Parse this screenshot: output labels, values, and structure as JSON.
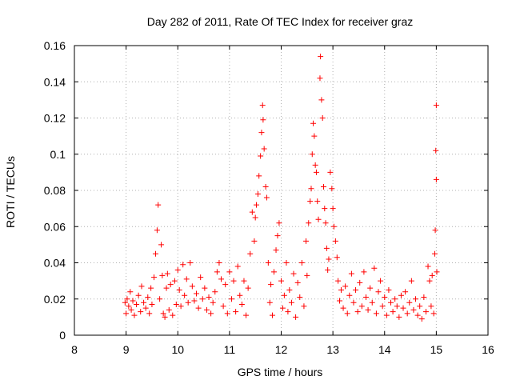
{
  "chart_data": {
    "type": "scatter",
    "title": "Day 282 of 2011, Rate Of TEC Index for receiver graz",
    "xlabel": "GPS time / hours",
    "ylabel": "ROTI / TECUs",
    "xlim": [
      8,
      16
    ],
    "ylim": [
      0,
      0.16
    ],
    "xticks": [
      "8",
      "9",
      "10",
      "11",
      "12",
      "13",
      "14",
      "15",
      "16"
    ],
    "yticks": [
      "0",
      "0.02",
      "0.04",
      "0.06",
      "0.08",
      "0.1",
      "0.12",
      "0.14",
      "0.16"
    ],
    "grid": true,
    "marker": "plus",
    "series": [
      {
        "color": "#ff0000",
        "points": [
          [
            8.98,
            0.018
          ],
          [
            9.0,
            0.012
          ],
          [
            9.02,
            0.02
          ],
          [
            9.05,
            0.016
          ],
          [
            9.08,
            0.024
          ],
          [
            9.1,
            0.014
          ],
          [
            9.13,
            0.019
          ],
          [
            9.16,
            0.011
          ],
          [
            9.2,
            0.017
          ],
          [
            9.24,
            0.022
          ],
          [
            9.28,
            0.013
          ],
          [
            9.3,
            0.027
          ],
          [
            9.34,
            0.018
          ],
          [
            9.38,
            0.015
          ],
          [
            9.42,
            0.021
          ],
          [
            9.45,
            0.012
          ],
          [
            9.48,
            0.026
          ],
          [
            9.5,
            0.017
          ],
          [
            9.54,
            0.032
          ],
          [
            9.57,
            0.045
          ],
          [
            9.6,
            0.058
          ],
          [
            9.62,
            0.072
          ],
          [
            9.65,
            0.02
          ],
          [
            9.68,
            0.05
          ],
          [
            9.7,
            0.033
          ],
          [
            9.72,
            0.012
          ],
          [
            9.75,
            0.01
          ],
          [
            9.78,
            0.026
          ],
          [
            9.8,
            0.034
          ],
          [
            9.83,
            0.014
          ],
          [
            9.86,
            0.028
          ],
          [
            9.9,
            0.011
          ],
          [
            9.94,
            0.03
          ],
          [
            9.97,
            0.017
          ],
          [
            10.0,
            0.036
          ],
          [
            10.03,
            0.025
          ],
          [
            10.06,
            0.016
          ],
          [
            10.1,
            0.039
          ],
          [
            10.13,
            0.022
          ],
          [
            10.17,
            0.031
          ],
          [
            10.2,
            0.018
          ],
          [
            10.24,
            0.04
          ],
          [
            10.28,
            0.027
          ],
          [
            10.32,
            0.019
          ],
          [
            10.36,
            0.023
          ],
          [
            10.4,
            0.015
          ],
          [
            10.44,
            0.032
          ],
          [
            10.48,
            0.02
          ],
          [
            10.52,
            0.026
          ],
          [
            10.56,
            0.014
          ],
          [
            10.6,
            0.021
          ],
          [
            10.64,
            0.012
          ],
          [
            10.68,
            0.018
          ],
          [
            10.72,
            0.024
          ],
          [
            10.76,
            0.035
          ],
          [
            10.8,
            0.04
          ],
          [
            10.84,
            0.031
          ],
          [
            10.88,
            0.016
          ],
          [
            10.92,
            0.028
          ],
          [
            10.96,
            0.012
          ],
          [
            11.0,
            0.035
          ],
          [
            11.04,
            0.02
          ],
          [
            11.08,
            0.03
          ],
          [
            11.12,
            0.013
          ],
          [
            11.16,
            0.038
          ],
          [
            11.2,
            0.022
          ],
          [
            11.24,
            0.017
          ],
          [
            11.28,
            0.03
          ],
          [
            11.32,
            0.011
          ],
          [
            11.36,
            0.026
          ],
          [
            11.4,
            0.045
          ],
          [
            11.44,
            0.068
          ],
          [
            11.48,
            0.052
          ],
          [
            11.5,
            0.065
          ],
          [
            11.52,
            0.072
          ],
          [
            11.55,
            0.078
          ],
          [
            11.57,
            0.088
          ],
          [
            11.6,
            0.099
          ],
          [
            11.62,
            0.112
          ],
          [
            11.64,
            0.127
          ],
          [
            11.65,
            0.119
          ],
          [
            11.67,
            0.103
          ],
          [
            11.7,
            0.082
          ],
          [
            11.72,
            0.076
          ],
          [
            11.75,
            0.04
          ],
          [
            11.78,
            0.018
          ],
          [
            11.8,
            0.028
          ],
          [
            11.83,
            0.011
          ],
          [
            11.86,
            0.035
          ],
          [
            11.9,
            0.047
          ],
          [
            11.93,
            0.055
          ],
          [
            11.96,
            0.062
          ],
          [
            12.0,
            0.03
          ],
          [
            12.03,
            0.015
          ],
          [
            12.06,
            0.022
          ],
          [
            12.1,
            0.04
          ],
          [
            12.13,
            0.013
          ],
          [
            12.16,
            0.025
          ],
          [
            12.2,
            0.018
          ],
          [
            12.24,
            0.034
          ],
          [
            12.28,
            0.01
          ],
          [
            12.32,
            0.029
          ],
          [
            12.36,
            0.021
          ],
          [
            12.4,
            0.04
          ],
          [
            12.44,
            0.016
          ],
          [
            12.48,
            0.052
          ],
          [
            12.5,
            0.033
          ],
          [
            12.53,
            0.062
          ],
          [
            12.56,
            0.074
          ],
          [
            12.58,
            0.081
          ],
          [
            12.6,
            0.1
          ],
          [
            12.62,
            0.117
          ],
          [
            12.64,
            0.11
          ],
          [
            12.66,
            0.094
          ],
          [
            12.68,
            0.09
          ],
          [
            12.7,
            0.074
          ],
          [
            12.72,
            0.064
          ],
          [
            12.75,
            0.142
          ],
          [
            12.76,
            0.154
          ],
          [
            12.78,
            0.13
          ],
          [
            12.8,
            0.12
          ],
          [
            12.82,
            0.082
          ],
          [
            12.84,
            0.07
          ],
          [
            12.86,
            0.062
          ],
          [
            12.88,
            0.048
          ],
          [
            12.9,
            0.036
          ],
          [
            12.92,
            0.042
          ],
          [
            12.95,
            0.09
          ],
          [
            12.98,
            0.081
          ],
          [
            13.0,
            0.07
          ],
          [
            13.02,
            0.06
          ],
          [
            13.05,
            0.052
          ],
          [
            13.08,
            0.043
          ],
          [
            13.1,
            0.03
          ],
          [
            13.13,
            0.019
          ],
          [
            13.16,
            0.025
          ],
          [
            13.2,
            0.015
          ],
          [
            13.24,
            0.027
          ],
          [
            13.28,
            0.012
          ],
          [
            13.32,
            0.022
          ],
          [
            13.36,
            0.034
          ],
          [
            13.4,
            0.018
          ],
          [
            13.44,
            0.025
          ],
          [
            13.48,
            0.013
          ],
          [
            13.52,
            0.029
          ],
          [
            13.56,
            0.016
          ],
          [
            13.6,
            0.035
          ],
          [
            13.64,
            0.021
          ],
          [
            13.68,
            0.014
          ],
          [
            13.72,
            0.026
          ],
          [
            13.76,
            0.018
          ],
          [
            13.8,
            0.037
          ],
          [
            13.84,
            0.012
          ],
          [
            13.88,
            0.024
          ],
          [
            13.92,
            0.03
          ],
          [
            13.96,
            0.016
          ],
          [
            14.0,
            0.021
          ],
          [
            14.04,
            0.011
          ],
          [
            14.08,
            0.025
          ],
          [
            14.12,
            0.018
          ],
          [
            14.16,
            0.013
          ],
          [
            14.2,
            0.02
          ],
          [
            14.24,
            0.016
          ],
          [
            14.28,
            0.01
          ],
          [
            14.32,
            0.022
          ],
          [
            14.36,
            0.015
          ],
          [
            14.4,
            0.024
          ],
          [
            14.44,
            0.012
          ],
          [
            14.48,
            0.018
          ],
          [
            14.52,
            0.03
          ],
          [
            14.56,
            0.014
          ],
          [
            14.6,
            0.02
          ],
          [
            14.64,
            0.011
          ],
          [
            14.68,
            0.016
          ],
          [
            14.72,
            0.009
          ],
          [
            14.76,
            0.021
          ],
          [
            14.8,
            0.013
          ],
          [
            14.84,
            0.038
          ],
          [
            14.87,
            0.03
          ],
          [
            14.9,
            0.016
          ],
          [
            14.92,
            0.033
          ],
          [
            14.95,
            0.012
          ],
          [
            14.97,
            0.045
          ],
          [
            14.98,
            0.058
          ],
          [
            14.99,
            0.102
          ],
          [
            15.0,
            0.127
          ],
          [
            15.0,
            0.086
          ],
          [
            15.01,
            0.035
          ]
        ]
      }
    ]
  }
}
